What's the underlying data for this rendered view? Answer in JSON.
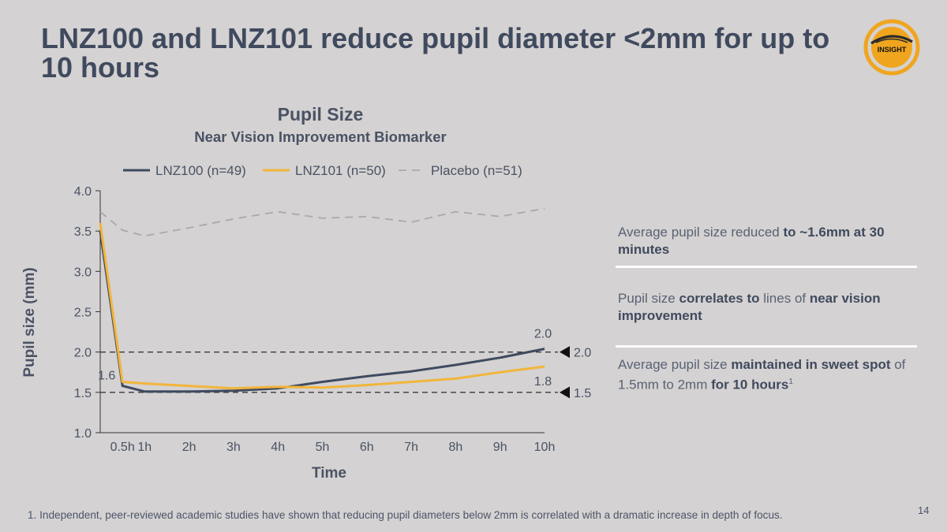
{
  "slide": {
    "title": "LNZ100 and LNZ101 reduce pupil diameter <2mm for up to 10 hours",
    "logo_text": "INSIGHT",
    "page_number": "14",
    "footnote": "1. Independent, peer-reviewed academic studies have shown that reducing pupil diameters below 2mm is correlated with a dramatic increase in depth of focus."
  },
  "colors": {
    "lnz100": "#3f4a60",
    "lnz101": "#f2b53a",
    "placebo": "#a9a9ad",
    "reference": "#3a3a3a",
    "logo_orange": "#f0a51f"
  },
  "panel": {
    "item1": {
      "pre": "Average pupil size reduced ",
      "bold": "to ~1.6mm at 30 minutes"
    },
    "item2": {
      "pre": "Pupil size ",
      "bold1": "correlates to",
      "mid": " lines of ",
      "bold2": "near vision improvement"
    },
    "item3": {
      "pre": "Average pupil size ",
      "bold1": "maintained in sweet spot",
      "mid": " of 1.5mm to 2mm ",
      "bold2": "for 10 hours",
      "sup": "1"
    }
  },
  "chart_data": {
    "type": "line",
    "title": "Pupil Size",
    "subtitle": "Near Vision Improvement Biomarker",
    "xlabel": "Time",
    "ylabel": "Pupil size (mm)",
    "ylim": [
      1.0,
      4.0
    ],
    "yticks": [
      "1.0",
      "1.5",
      "2.0",
      "2.5",
      "3.0",
      "3.5",
      "4.0"
    ],
    "x": [
      0,
      0.5,
      1,
      2,
      3,
      4,
      5,
      6,
      7,
      8,
      9,
      10
    ],
    "xticks": [
      "0.5h",
      "1h",
      "2h",
      "3h",
      "4h",
      "5h",
      "6h",
      "7h",
      "8h",
      "9h",
      "10h"
    ],
    "series": [
      {
        "name": "LNZ100 (n=49)",
        "color_key": "lnz100",
        "dash": false,
        "values": [
          3.5,
          1.58,
          1.51,
          1.51,
          1.52,
          1.55,
          1.63,
          1.7,
          1.76,
          1.84,
          1.93,
          2.04
        ]
      },
      {
        "name": "LNZ101 (n=50)",
        "color_key": "lnz101",
        "dash": false,
        "values": [
          3.6,
          1.63,
          1.61,
          1.58,
          1.55,
          1.57,
          1.56,
          1.59,
          1.63,
          1.67,
          1.75,
          1.82
        ]
      },
      {
        "name": "Placebo (n=51)",
        "color_key": "placebo",
        "dash": true,
        "values": [
          3.74,
          3.51,
          3.44,
          3.54,
          3.65,
          3.74,
          3.66,
          3.68,
          3.61,
          3.74,
          3.68,
          3.78
        ]
      }
    ],
    "reference_lines": [
      {
        "y": 2.0,
        "label": "2.0"
      },
      {
        "y": 1.5,
        "label": "1.5"
      }
    ],
    "annotations": [
      {
        "label": "1.6",
        "x": 0.5,
        "y": 1.6
      },
      {
        "label": "2.0",
        "x": 10,
        "y": 2.04
      },
      {
        "label": "1.8",
        "x": 10,
        "y": 1.82
      }
    ]
  }
}
